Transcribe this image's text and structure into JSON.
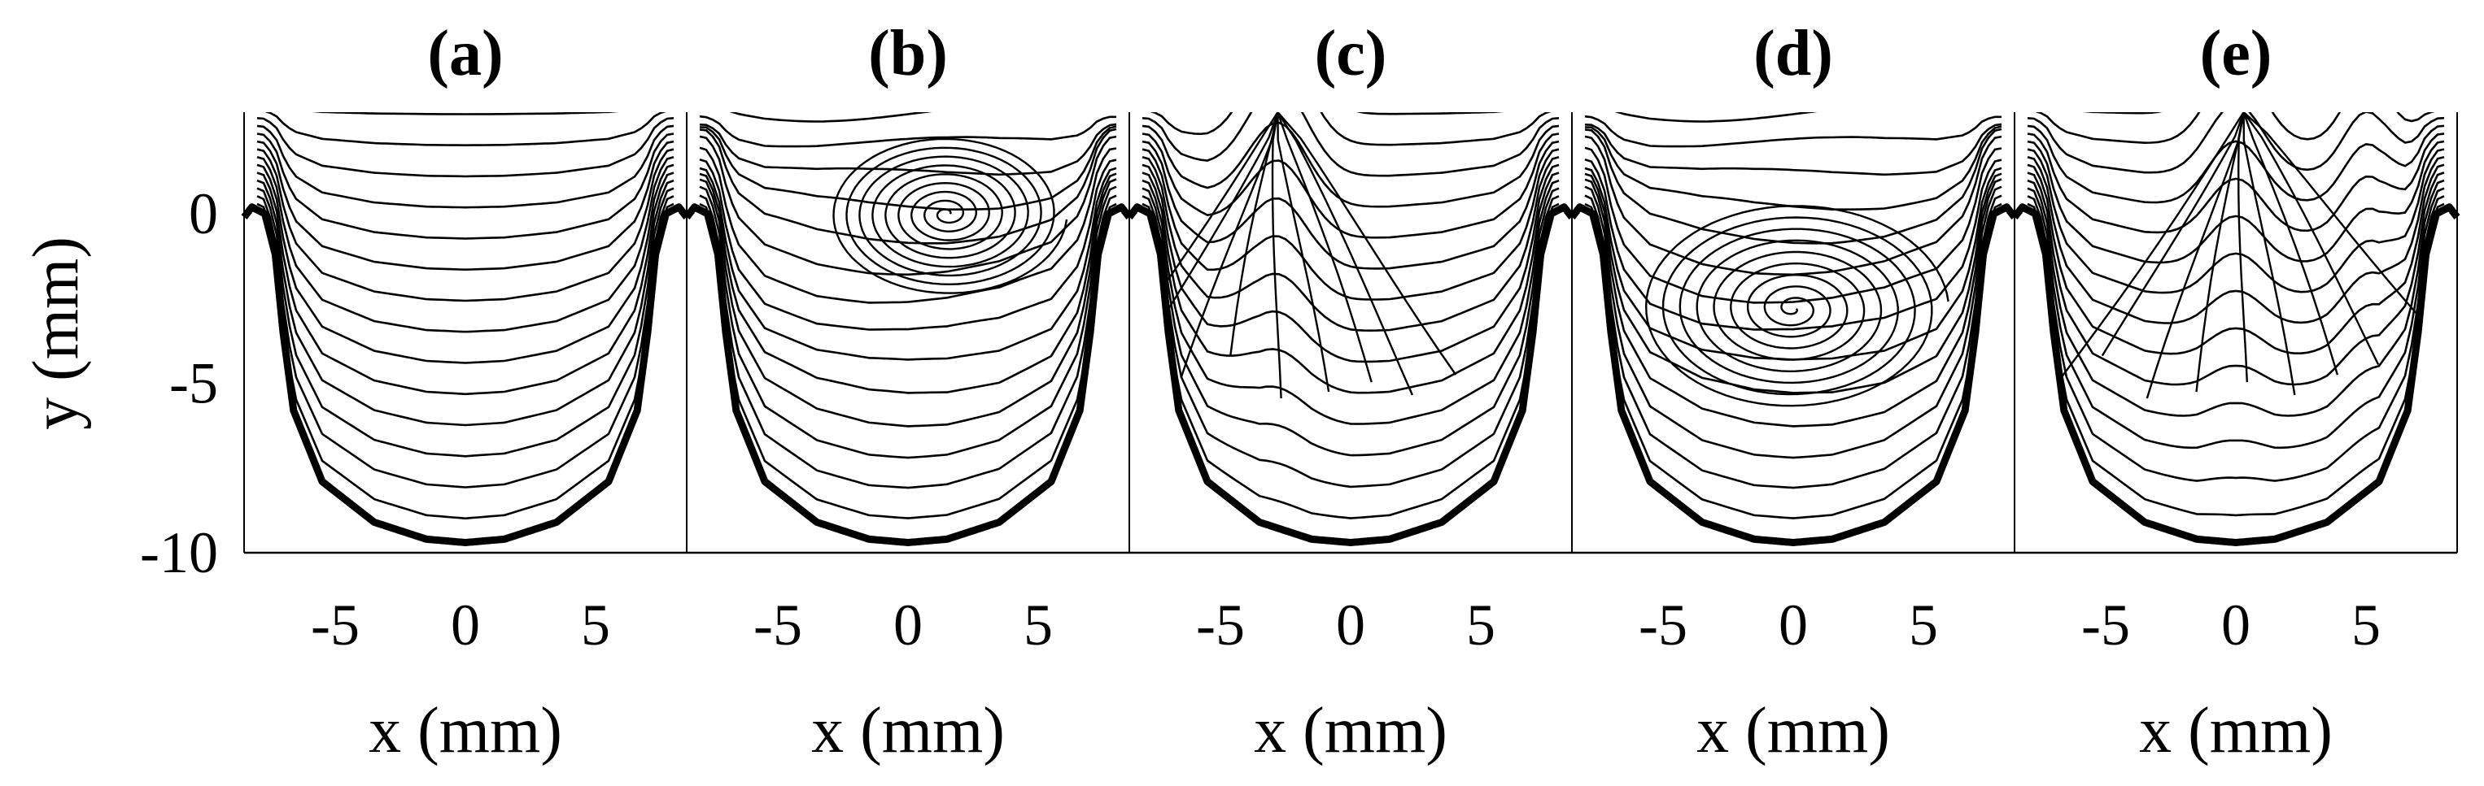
{
  "chart_data": {
    "type": "streamline",
    "panels": [
      {
        "title": "(a)",
        "xlabel": "x (mm)",
        "vortex": null
      },
      {
        "title": "(b)",
        "xlabel": "x (mm)",
        "vortex": {
          "x": 1.5,
          "y": 0.0,
          "sense": "counterclockwise"
        }
      },
      {
        "title": "(c)",
        "xlabel": "x (mm)",
        "vortex": null
      },
      {
        "title": "(d)",
        "xlabel": "x (mm)",
        "vortex": {
          "x": 0.0,
          "y": -2.8,
          "sense": "clockwise"
        }
      },
      {
        "title": "(e)",
        "xlabel": "x (mm)",
        "vortex": null
      }
    ],
    "ylabel": "y (mm)",
    "xlim": [
      -8.5,
      8.5
    ],
    "ylim": [
      -10,
      3
    ],
    "xticks": [
      "-5",
      "0",
      "5"
    ],
    "yticks": [
      "0",
      "-5",
      "-10"
    ],
    "wall_profile": {
      "x": [
        -8.5,
        -8.2,
        -7.7,
        -7.3,
        -7.0,
        -6.6,
        -5.5,
        -3.5,
        -1.5,
        0,
        1.5,
        3.5,
        5.5,
        6.6,
        7.0,
        7.3,
        7.7,
        8.2,
        8.5
      ],
      "y": [
        -0.1,
        0.2,
        0.0,
        -1.2,
        -3.5,
        -5.8,
        -7.9,
        -9.1,
        -9.6,
        -9.7,
        -9.6,
        -9.1,
        -7.9,
        -5.8,
        -3.5,
        -1.2,
        0.0,
        0.2,
        -0.1
      ]
    }
  }
}
